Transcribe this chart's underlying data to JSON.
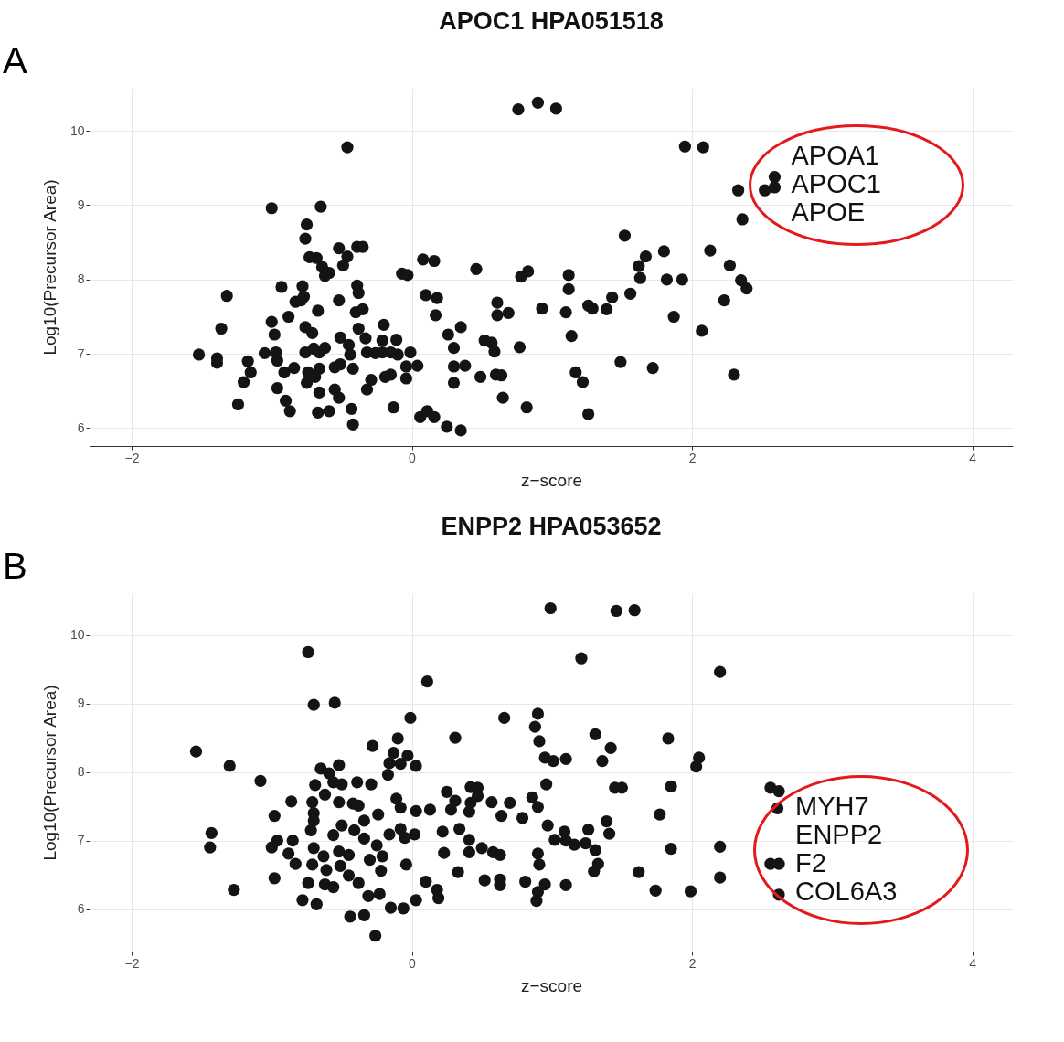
{
  "chart_data": [
    {
      "type": "scatter",
      "title": "APOC1 HPA051518",
      "xlabel": "z−score",
      "ylabel": "Log10(Precursor Area)",
      "marker": "circle",
      "grid": true,
      "xlim": [
        -2.3,
        4.29
      ],
      "ylim": [
        5.76,
        10.58
      ],
      "xticks": [
        -2,
        0,
        2,
        4
      ],
      "yticks": [
        6,
        7,
        8,
        9,
        10
      ],
      "annotations": [
        "A",
        "APOA1",
        "APOC1",
        "APOE"
      ],
      "series": [
        {
          "color": "#141414",
          "x": [
            -1.52,
            -1.39,
            -1.39,
            -1.32,
            -1.36,
            -1.17,
            -1.15,
            -1.2,
            -1.24,
            -1.05,
            -1.0,
            -0.93,
            -1.0,
            -0.98,
            -0.97,
            -0.96,
            -0.96,
            -0.91,
            -0.9,
            -0.87,
            -0.88,
            -0.83,
            -0.79,
            -0.84,
            -0.76,
            -0.75,
            -0.73,
            -0.68,
            -0.78,
            -0.77,
            -0.76,
            -0.71,
            -0.76,
            -0.7,
            -0.66,
            -0.65,
            -0.64,
            -0.62,
            -0.59,
            -0.67,
            -0.62,
            -0.74,
            -0.69,
            -0.66,
            -0.75,
            -0.66,
            -0.67,
            -0.59,
            -0.55,
            -0.52,
            -0.55,
            -0.51,
            -0.51,
            -0.52,
            -0.52,
            -0.49,
            -0.46,
            -0.45,
            -0.44,
            -0.42,
            -0.39,
            -0.38,
            -0.39,
            -0.35,
            -0.4,
            -0.35,
            -0.43,
            -0.42,
            -0.46,
            -0.38,
            -0.33,
            -0.32,
            -0.26,
            -0.21,
            -0.15,
            -0.1,
            -0.32,
            -0.29,
            -0.21,
            -0.2,
            -0.11,
            -0.19,
            -0.15,
            -0.04,
            -0.01,
            -0.04,
            -0.07,
            -0.03,
            0.04,
            -0.13,
            0.08,
            0.16,
            0.1,
            0.18,
            0.17,
            0.06,
            0.11,
            0.16,
            0.25,
            0.35,
            0.26,
            0.3,
            0.3,
            0.3,
            0.35,
            0.38,
            0.46,
            0.49,
            0.52,
            0.57,
            0.59,
            0.6,
            0.64,
            0.61,
            0.61,
            0.65,
            0.69,
            0.77,
            0.78,
            0.83,
            0.82,
            0.9,
            0.76,
            1.03,
            0.93,
            1.1,
            1.12,
            1.12,
            1.14,
            1.17,
            1.22,
            1.26,
            1.26,
            1.29,
            1.39,
            1.43,
            1.49,
            1.52,
            1.56,
            1.62,
            1.63,
            1.67,
            1.72,
            1.8,
            1.82,
            1.87,
            1.93,
            1.95,
            2.08,
            2.07,
            2.13,
            2.27,
            2.23,
            2.3,
            2.33,
            2.36,
            2.35,
            2.39,
            2.52,
            2.59,
            2.59
          ],
          "values": [
            6.99,
            6.94,
            6.88,
            7.78,
            7.34,
            6.9,
            6.75,
            6.62,
            6.32,
            7.01,
            8.96,
            7.9,
            7.43,
            7.26,
            7.02,
            6.91,
            6.54,
            6.75,
            6.37,
            6.23,
            7.5,
            7.7,
            7.72,
            6.81,
            8.55,
            8.74,
            8.3,
            8.29,
            7.91,
            7.77,
            7.36,
            7.28,
            7.02,
            7.07,
            7.02,
            8.98,
            8.17,
            8.05,
            8.09,
            7.58,
            7.08,
            6.75,
            6.69,
            6.8,
            6.61,
            6.48,
            6.21,
            6.23,
            6.52,
            6.41,
            6.82,
            6.86,
            7.22,
            7.72,
            8.42,
            8.19,
            8.31,
            7.12,
            6.99,
            6.8,
            7.92,
            7.82,
            8.44,
            8.44,
            7.56,
            7.6,
            6.26,
            6.05,
            9.78,
            7.34,
            7.21,
            7.02,
            7.01,
            7.02,
            7.02,
            6.99,
            6.52,
            6.65,
            7.18,
            7.39,
            7.19,
            6.69,
            6.72,
            6.83,
            7.02,
            6.67,
            8.08,
            8.06,
            6.84,
            6.28,
            8.27,
            8.25,
            7.79,
            7.75,
            7.52,
            6.15,
            6.23,
            6.15,
            6.02,
            5.97,
            7.26,
            7.08,
            6.83,
            6.61,
            7.36,
            6.84,
            8.14,
            6.69,
            7.18,
            7.15,
            7.03,
            6.72,
            6.71,
            7.69,
            7.52,
            6.41,
            7.55,
            7.09,
            8.04,
            8.11,
            6.28,
            10.38,
            10.29,
            10.3,
            7.61,
            7.56,
            8.06,
            7.87,
            7.24,
            6.75,
            6.62,
            6.19,
            7.65,
            7.61,
            7.6,
            7.76,
            6.89,
            8.59,
            7.81,
            8.18,
            8.02,
            8.31,
            6.81,
            8.38,
            8.0,
            7.5,
            8.0,
            9.79,
            9.78,
            7.31,
            8.39,
            8.19,
            7.72,
            6.72,
            9.2,
            8.81,
            7.99,
            7.88,
            9.2,
            9.38,
            9.24
          ]
        }
      ]
    },
    {
      "type": "scatter",
      "title": "ENPP2 HPA053652",
      "xlabel": "z−score",
      "ylabel": "Log10(Precursor Area)",
      "marker": "circle",
      "grid": true,
      "xlim": [
        -2.3,
        4.29
      ],
      "ylim": [
        5.38,
        10.61
      ],
      "xticks": [
        -2,
        0,
        2,
        4
      ],
      "yticks": [
        6,
        7,
        8,
        9,
        10
      ],
      "annotations": [
        "B",
        "MYH7",
        "ENPP2",
        "F2",
        "COL6A3"
      ],
      "series": [
        {
          "color": "#141414",
          "x": [
            -1.54,
            -1.3,
            -1.08,
            -1.43,
            -1.44,
            -1.27,
            -0.98,
            -0.86,
            -0.74,
            -0.7,
            -0.55,
            -0.96,
            -1.0,
            -0.85,
            -0.88,
            -0.83,
            -0.98,
            -0.71,
            -0.78,
            -0.68,
            -0.74,
            -0.65,
            -0.52,
            -0.59,
            -0.69,
            -0.56,
            -0.5,
            -0.39,
            -0.29,
            -0.28,
            -0.71,
            -0.62,
            -0.52,
            -0.42,
            -0.38,
            -0.7,
            -0.7,
            -0.72,
            -0.34,
            -0.24,
            -0.56,
            -0.5,
            -0.41,
            -0.34,
            -0.25,
            -0.7,
            -0.63,
            -0.52,
            -0.45,
            -0.51,
            -0.61,
            -0.62,
            -0.56,
            -0.45,
            -0.38,
            -0.3,
            -0.21,
            -0.22,
            -0.31,
            -0.23,
            -0.15,
            -0.06,
            0.03,
            -0.44,
            -0.34,
            -0.26,
            -0.1,
            -0.13,
            -0.16,
            -0.08,
            -0.03,
            0.03,
            -0.17,
            -0.01,
            0.11,
            -0.11,
            -0.08,
            0.03,
            0.13,
            -0.16,
            -0.08,
            -0.05,
            0.02,
            -0.04,
            0.1,
            0.19,
            0.18,
            0.22,
            0.23,
            0.25,
            0.28,
            0.31,
            0.31,
            0.34,
            0.41,
            0.41,
            0.33,
            0.42,
            0.47,
            0.42,
            0.41,
            0.47,
            0.57,
            0.64,
            0.7,
            0.5,
            0.58,
            0.63,
            0.52,
            0.63,
            0.63,
            0.79,
            0.81,
            0.66,
            0.9,
            0.88,
            0.91,
            0.86,
            0.9,
            0.9,
            0.91,
            0.9,
            0.89,
            0.99,
            1.46,
            1.59,
            1.21,
            2.2,
            0.95,
            1.01,
            1.1,
            1.31,
            1.42,
            1.36,
            1.83,
            2.05,
            2.03,
            0.96,
            1.45,
            1.5,
            1.85,
            0.97,
            1.09,
            1.26,
            1.39,
            1.41,
            1.02,
            1.1,
            1.16,
            1.24,
            1.31,
            1.33,
            1.3,
            1.62,
            1.77,
            1.85,
            2.2,
            2.2,
            0.95,
            1.1,
            1.74,
            1.99,
            2.56,
            2.62,
            2.62,
            2.56,
            2.62,
            2.61
          ],
          "values": [
            8.3,
            8.09,
            7.87,
            7.11,
            6.9,
            6.28,
            7.36,
            7.57,
            9.75,
            8.98,
            9.01,
            7.0,
            6.9,
            7.0,
            6.81,
            6.66,
            6.45,
            6.65,
            6.13,
            6.07,
            6.38,
            8.05,
            8.1,
            7.98,
            7.81,
            7.85,
            7.82,
            7.85,
            7.82,
            8.38,
            7.56,
            7.67,
            7.56,
            7.54,
            7.51,
            7.4,
            7.29,
            7.15,
            7.29,
            7.38,
            7.08,
            7.22,
            7.15,
            7.03,
            6.93,
            6.89,
            6.77,
            6.84,
            6.79,
            6.63,
            6.57,
            6.36,
            6.32,
            6.49,
            6.38,
            6.72,
            6.77,
            6.56,
            6.19,
            6.22,
            6.02,
            6.01,
            6.13,
            5.89,
            5.91,
            5.61,
            8.49,
            8.28,
            8.13,
            8.12,
            8.24,
            8.09,
            7.96,
            8.79,
            9.32,
            7.61,
            7.48,
            7.43,
            7.45,
            7.09,
            7.17,
            7.04,
            7.09,
            6.65,
            6.4,
            6.16,
            6.28,
            7.13,
            6.82,
            7.71,
            7.45,
            7.58,
            8.5,
            7.17,
            7.01,
            6.83,
            6.54,
            7.78,
            7.77,
            7.55,
            7.42,
            7.65,
            7.56,
            7.36,
            7.55,
            6.89,
            6.83,
            6.79,
            6.42,
            6.43,
            6.35,
            7.33,
            6.4,
            8.79,
            8.85,
            8.66,
            8.45,
            7.63,
            7.49,
            6.81,
            6.65,
            6.25,
            6.12,
            10.39,
            10.35,
            10.36,
            9.66,
            9.46,
            8.21,
            8.16,
            8.19,
            8.55,
            8.35,
            8.16,
            8.49,
            8.21,
            8.08,
            7.82,
            7.77,
            7.77,
            7.79,
            7.22,
            7.13,
            7.16,
            7.28,
            7.1,
            7.01,
            7.0,
            6.94,
            6.96,
            6.86,
            6.66,
            6.55,
            6.54,
            7.38,
            6.88,
            6.91,
            6.46,
            6.36,
            6.35,
            6.27,
            6.26,
            6.66,
            6.66,
            6.21,
            7.77,
            7.72,
            7.47
          ]
        }
      ]
    }
  ]
}
